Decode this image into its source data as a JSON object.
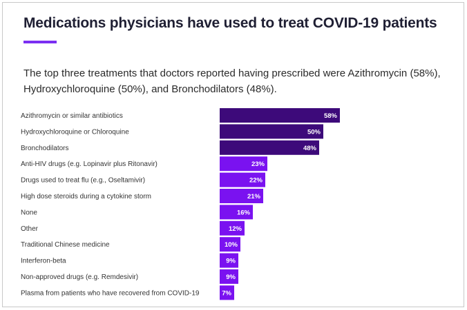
{
  "title": "Medications physicians have used to treat COVID-19 patients",
  "subtitle": "The top three treatments that doctors reported having prescribed were Azithromycin (58%), Hydroxychloroquine (50%), and Bronchodilators (48%).",
  "colors": {
    "title": "#1f1f33",
    "accent": "#7b2ff2",
    "bar_top": "#3d0a7a",
    "bar_rest": "#7a12f0",
    "value_text": "#ffffff"
  },
  "chart_data": {
    "type": "bar",
    "orientation": "horizontal",
    "categories": [
      "Azithromycin or similar antibiotics",
      "Hydroxychloroquine or Chloroquine",
      "Bronchodilators",
      "Anti-HIV drugs (e.g. Lopinavir plus Ritonavir)",
      "Drugs used to treat flu (e.g., Oseltamivir)",
      "High dose steroids during a cytokine storm",
      "None",
      "Other",
      "Traditional Chinese medicine",
      "Interferon-beta",
      "Non-approved drugs (e.g. Remdesivir)",
      "Plasma from patients who have recovered from COVID-19"
    ],
    "values": [
      58,
      50,
      48,
      23,
      22,
      21,
      16,
      12,
      10,
      9,
      9,
      7
    ],
    "value_labels": [
      "58%",
      "50%",
      "48%",
      "23%",
      "22%",
      "21%",
      "16%",
      "12%",
      "10%",
      "9%",
      "9%",
      "7%"
    ],
    "highlight_top": 3,
    "unit": "%",
    "xlim": [
      0,
      100
    ],
    "grid": false,
    "legend": "none"
  }
}
